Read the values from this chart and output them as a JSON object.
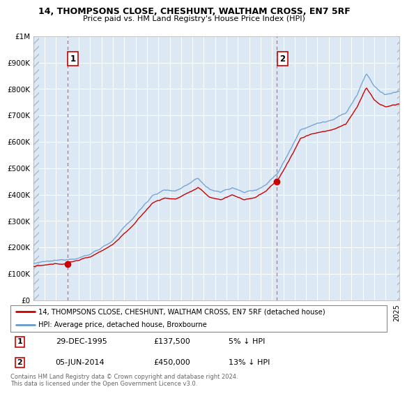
{
  "title1": "14, THOMPSONS CLOSE, CHESHUNT, WALTHAM CROSS, EN7 5RF",
  "title2": "Price paid vs. HM Land Registry's House Price Index (HPI)",
  "legend_line1": "14, THOMPSONS CLOSE, CHESHUNT, WALTHAM CROSS, EN7 5RF (detached house)",
  "legend_line2": "HPI: Average price, detached house, Broxbourne",
  "annotation1_date": "29-DEC-1995",
  "annotation1_price": "£137,500",
  "annotation1_hpi": "5% ↓ HPI",
  "annotation2_date": "05-JUN-2014",
  "annotation2_price": "£450,000",
  "annotation2_hpi": "13% ↓ HPI",
  "footer": "Contains HM Land Registry data © Crown copyright and database right 2024.\nThis data is licensed under the Open Government Licence v3.0.",
  "bg_color": "#dce9f5",
  "hatch_color": "#aabbcc",
  "red_line_color": "#cc0000",
  "blue_line_color": "#6699cc",
  "dashed_red_color": "#dd6666",
  "annotation_box_color": "#cc0000",
  "ylim_min": 0,
  "ylim_max": 1000000,
  "sale1_year": 1995.99,
  "sale1_price": 137500,
  "sale2_year": 2014.43,
  "sale2_price": 450000,
  "xmin": 1993,
  "xmax": 2025.2
}
